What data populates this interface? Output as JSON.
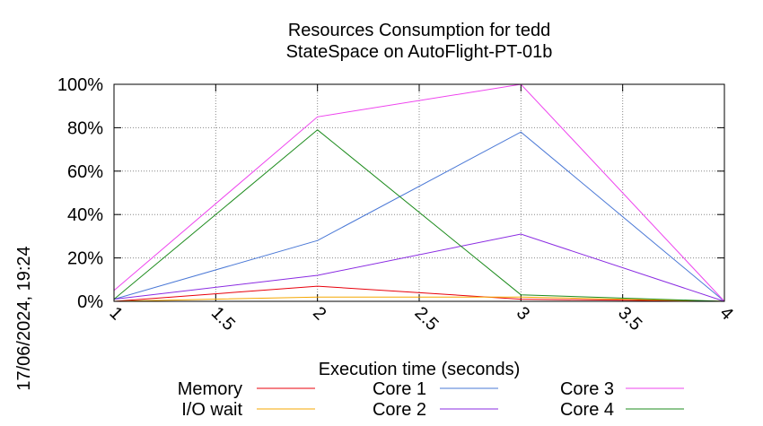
{
  "chart_data": {
    "type": "line",
    "title": "Resources Consumption for tedd",
    "subtitle": "StateSpace on AutoFlight-PT-01b",
    "xlabel": "Execution time (seconds)",
    "ylabel": "",
    "side_label": "17/06/2024, 19:24",
    "xlim": [
      1,
      4
    ],
    "ylim": [
      0,
      100
    ],
    "xticks": [
      "1",
      "1.5",
      "2",
      "2.5",
      "3",
      "3.5",
      "4"
    ],
    "yticks": [
      "0%",
      "20%",
      "40%",
      "60%",
      "80%",
      "100%"
    ],
    "grid": true,
    "legend_position": "bottom",
    "x": [
      1,
      2,
      3,
      4
    ],
    "series": [
      {
        "name": "Memory",
        "color": "#e8000b",
        "values": [
          0,
          7,
          1,
          0
        ]
      },
      {
        "name": "I/O wait",
        "color": "#f5a700",
        "values": [
          0,
          2,
          2,
          0
        ]
      },
      {
        "name": "Core 1",
        "color": "#4a78d6",
        "values": [
          1,
          28,
          78,
          0
        ]
      },
      {
        "name": "Core 2",
        "color": "#8a2be2",
        "values": [
          1,
          12,
          31,
          0
        ]
      },
      {
        "name": "Core 3",
        "color": "#ee44ee",
        "values": [
          5,
          85,
          100,
          0
        ]
      },
      {
        "name": "Core 4",
        "color": "#1e8c1e",
        "values": [
          1,
          79,
          3,
          0
        ]
      }
    ]
  }
}
